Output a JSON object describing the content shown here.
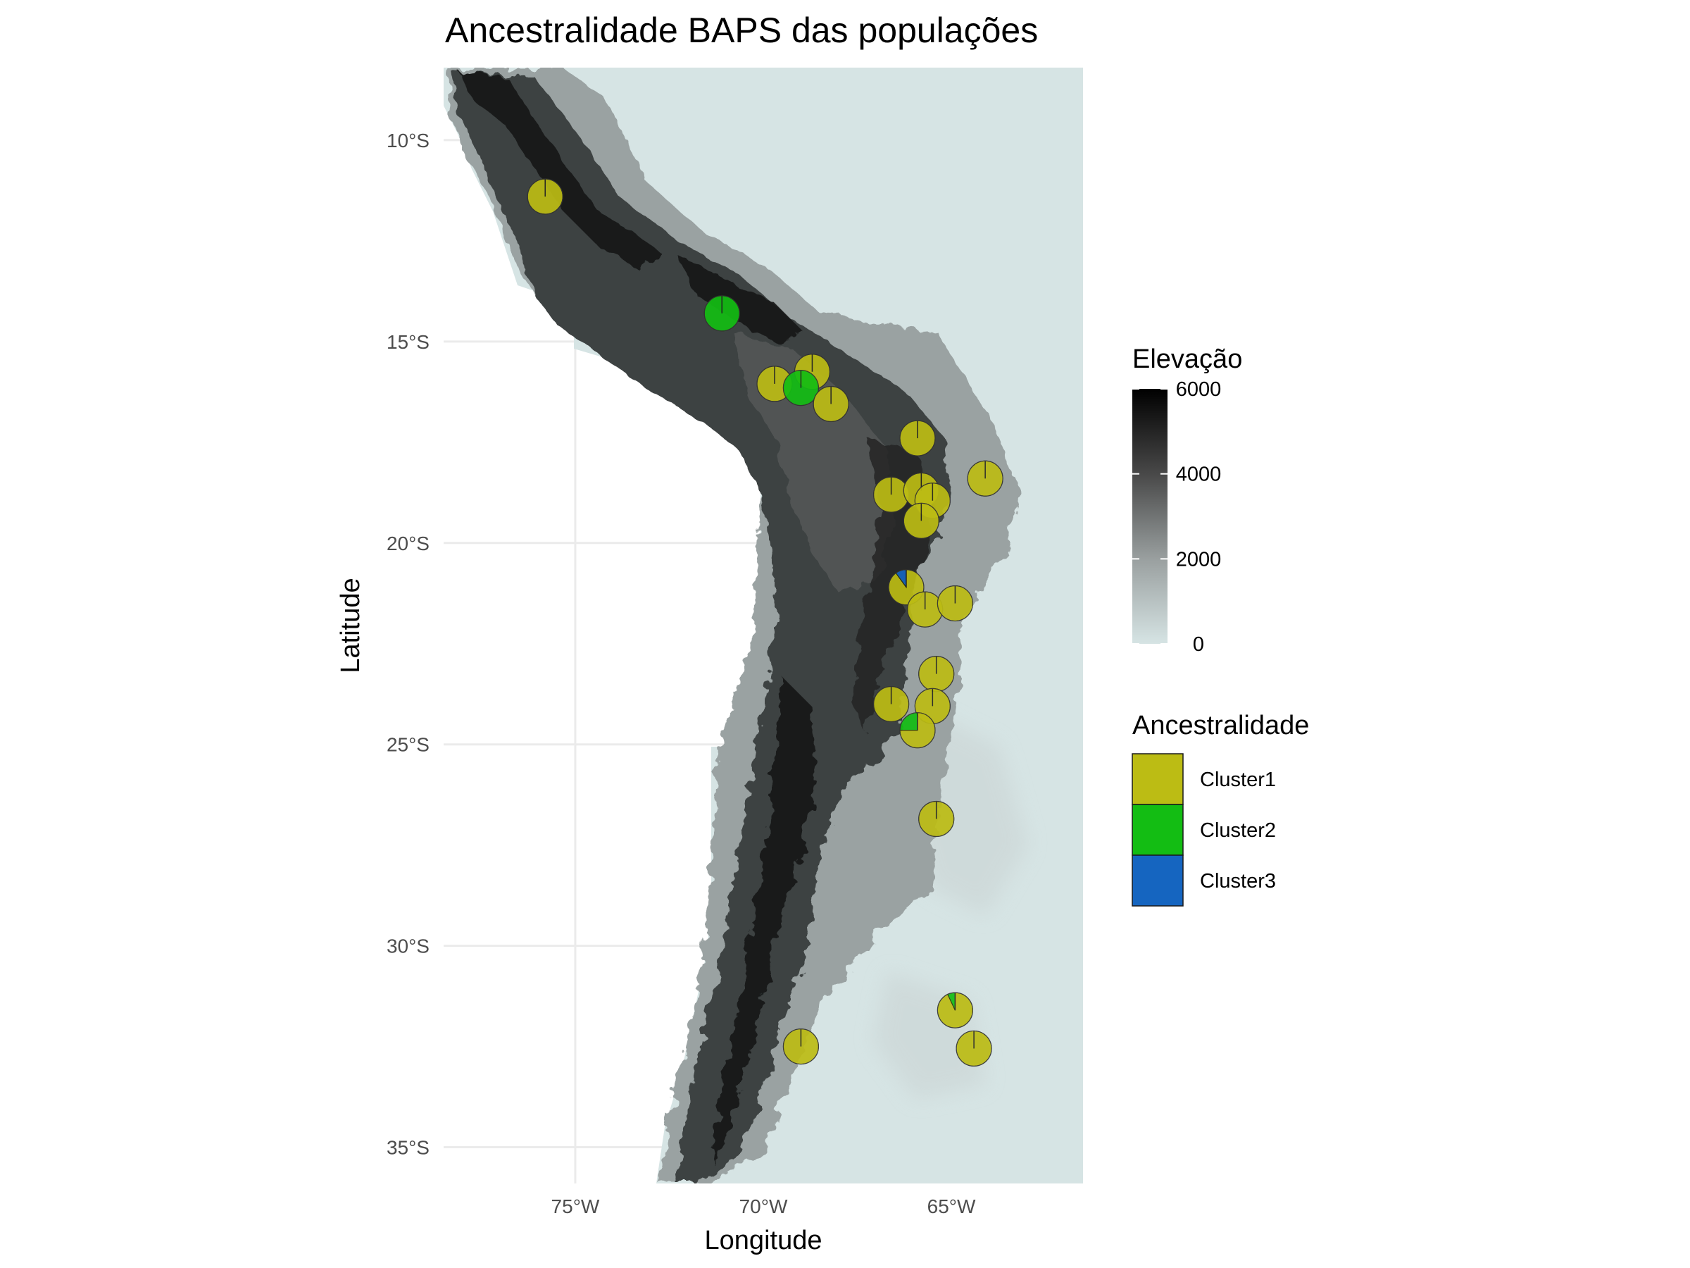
{
  "map": {
    "title": "Ancestralidade BAPS das populações",
    "xlabel": "Longitude",
    "ylabel": "Latitude",
    "x_range": [
      -78.5,
      -61.5
    ],
    "y_range": [
      -35.9,
      -8.2
    ],
    "x_ticks": [
      {
        "value": -75,
        "label": "75°W"
      },
      {
        "value": -70,
        "label": "70°W"
      },
      {
        "value": -65,
        "label": "65°W"
      }
    ],
    "y_ticks": [
      {
        "value": -10,
        "label": "10°S"
      },
      {
        "value": -15,
        "label": "15°S"
      },
      {
        "value": -20,
        "label": "20°S"
      },
      {
        "value": -25,
        "label": "25°S"
      },
      {
        "value": -30,
        "label": "30°S"
      },
      {
        "value": -35,
        "label": "35°S"
      }
    ],
    "background_color": "#ffffff",
    "grid_color": "#ebebeb",
    "sea_color": "#d6e4e4"
  },
  "elevation_legend": {
    "title": "Elevação",
    "min": 0,
    "max": 6000,
    "ticks": [
      {
        "value": 6000,
        "label": "6000"
      },
      {
        "value": 4000,
        "label": "4000"
      },
      {
        "value": 2000,
        "label": "2000"
      },
      {
        "value": 0,
        "label": "0"
      }
    ],
    "colors": [
      "#d6e4e4",
      "#9aa0a0",
      "#4a4a4a",
      "#000000"
    ]
  },
  "ancestry_legend": {
    "title": "Ancestralidade",
    "items": [
      {
        "label": "Cluster1",
        "color": "#bcbc14"
      },
      {
        "label": "Cluster2",
        "color": "#13bd13"
      },
      {
        "label": "Cluster3",
        "color": "#1565c0"
      }
    ]
  },
  "populations": [
    {
      "lon": -75.8,
      "lat": -11.4,
      "c1": 1.0,
      "c2": 0.0,
      "c3": 0.0
    },
    {
      "lon": -71.1,
      "lat": -14.3,
      "c1": 0.0,
      "c2": 1.0,
      "c3": 0.0
    },
    {
      "lon": -69.7,
      "lat": -16.05,
      "c1": 1.0,
      "c2": 0.0,
      "c3": 0.0
    },
    {
      "lon": -68.7,
      "lat": -15.75,
      "c1": 1.0,
      "c2": 0.0,
      "c3": 0.0
    },
    {
      "lon": -69.0,
      "lat": -16.15,
      "c1": 0.0,
      "c2": 1.0,
      "c3": 0.0
    },
    {
      "lon": -68.2,
      "lat": -16.55,
      "c1": 1.0,
      "c2": 0.0,
      "c3": 0.0
    },
    {
      "lon": -65.9,
      "lat": -17.4,
      "c1": 1.0,
      "c2": 0.0,
      "c3": 0.0
    },
    {
      "lon": -64.1,
      "lat": -18.4,
      "c1": 1.0,
      "c2": 0.0,
      "c3": 0.0
    },
    {
      "lon": -66.6,
      "lat": -18.8,
      "c1": 1.0,
      "c2": 0.0,
      "c3": 0.0
    },
    {
      "lon": -65.8,
      "lat": -18.7,
      "c1": 1.0,
      "c2": 0.0,
      "c3": 0.0
    },
    {
      "lon": -65.5,
      "lat": -18.95,
      "c1": 1.0,
      "c2": 0.0,
      "c3": 0.0
    },
    {
      "lon": -65.8,
      "lat": -19.45,
      "c1": 1.0,
      "c2": 0.0,
      "c3": 0.0
    },
    {
      "lon": -66.2,
      "lat": -21.1,
      "c1": 0.9,
      "c2": 0.0,
      "c3": 0.1
    },
    {
      "lon": -65.7,
      "lat": -21.65,
      "c1": 1.0,
      "c2": 0.0,
      "c3": 0.0
    },
    {
      "lon": -64.9,
      "lat": -21.5,
      "c1": 1.0,
      "c2": 0.0,
      "c3": 0.0
    },
    {
      "lon": -65.4,
      "lat": -23.25,
      "c1": 1.0,
      "c2": 0.0,
      "c3": 0.0
    },
    {
      "lon": -66.6,
      "lat": -24.0,
      "c1": 1.0,
      "c2": 0.0,
      "c3": 0.0
    },
    {
      "lon": -65.5,
      "lat": -24.05,
      "c1": 1.0,
      "c2": 0.0,
      "c3": 0.0
    },
    {
      "lon": -65.9,
      "lat": -24.65,
      "c1": 0.75,
      "c2": 0.25,
      "c3": 0.0
    },
    {
      "lon": -65.4,
      "lat": -26.85,
      "c1": 1.0,
      "c2": 0.0,
      "c3": 0.0
    },
    {
      "lon": -64.9,
      "lat": -31.6,
      "c1": 0.93,
      "c2": 0.07,
      "c3": 0.0
    },
    {
      "lon": -64.4,
      "lat": -32.55,
      "c1": 1.0,
      "c2": 0.0,
      "c3": 0.0
    },
    {
      "lon": -69.0,
      "lat": -32.5,
      "c1": 1.0,
      "c2": 0.0,
      "c3": 0.0
    }
  ]
}
